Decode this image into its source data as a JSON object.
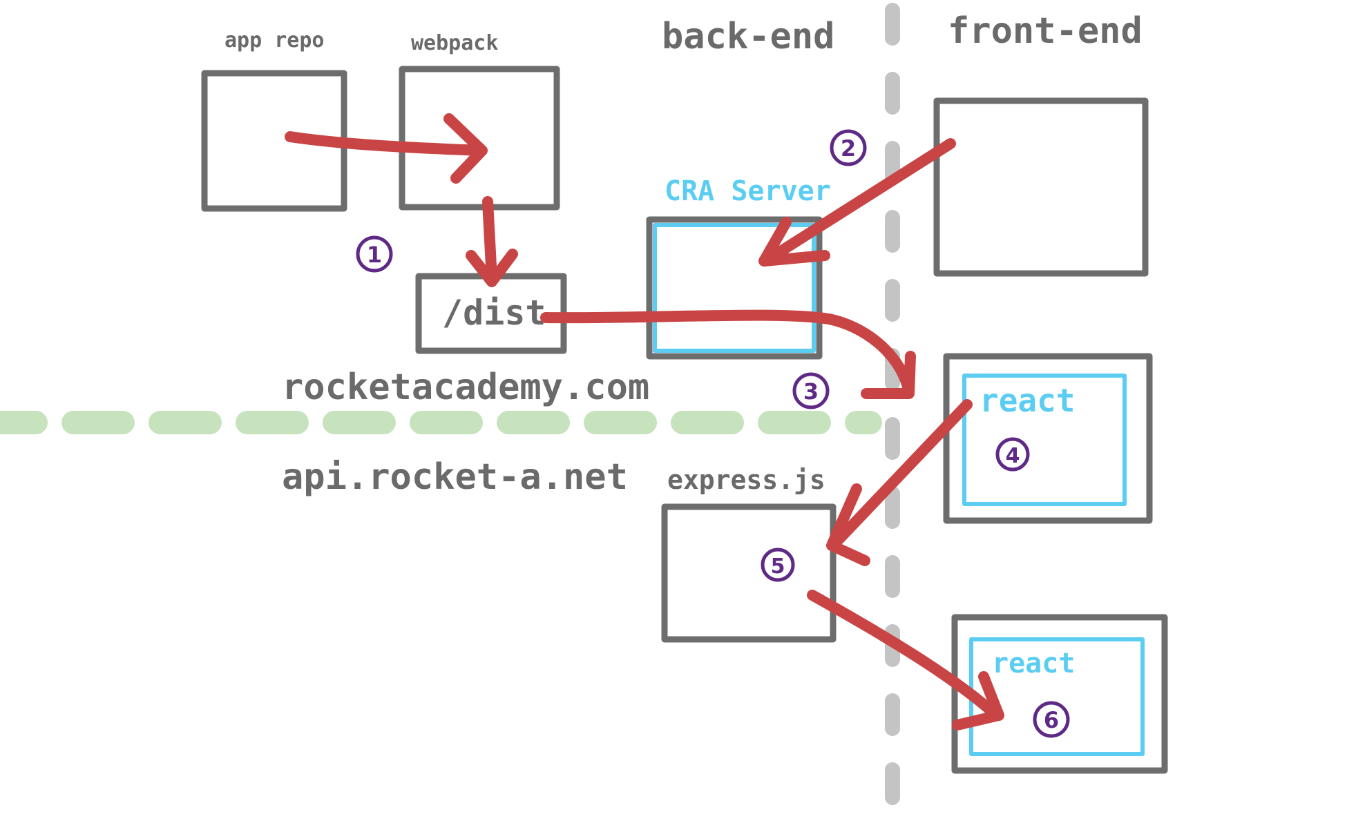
{
  "labels": {
    "app_repo": "app repo",
    "webpack": "webpack",
    "back_end": "back-end",
    "front_end": "front-end",
    "cra_server": "CRA Server",
    "dist": "/dist",
    "rocketacademy": "rocketacademy.com",
    "api_domain": "api.rocket-a.net",
    "express": "express.js",
    "react_1": "react",
    "react_2": "react"
  },
  "steps": [
    "1",
    "2",
    "3",
    "4",
    "5",
    "6"
  ],
  "colors": {
    "box": "#6d6d6d",
    "arrow": "#c94545",
    "cyan": "#5ccdf2",
    "badge": "#5e2a86",
    "divider_vertical": "#c4c4c4",
    "divider_horizontal": "#c6e3be"
  }
}
